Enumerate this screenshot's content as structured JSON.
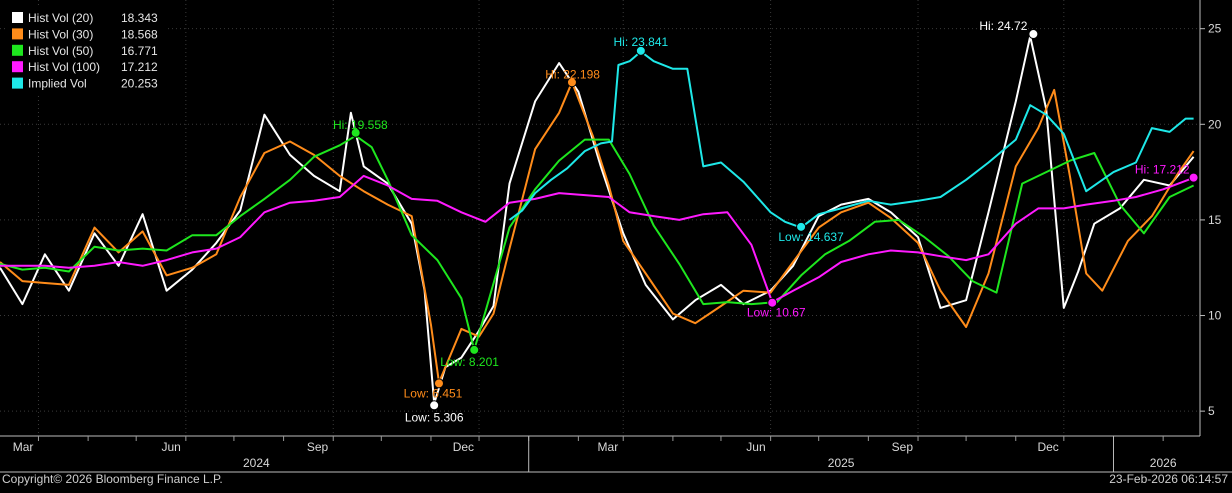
{
  "copyright": "Copyright© 2026 Bloomberg Finance L.P.",
  "timestamp": "23-Feb-2026 06:14:57",
  "chart_data": {
    "type": "line",
    "x_label_type": "date",
    "xlim": [
      "2024-02-06",
      "2026-02-24"
    ],
    "ylim": [
      3.7,
      26.5
    ],
    "y_ticks": [
      5,
      10,
      15,
      20,
      25
    ],
    "grid": true,
    "legend_position": "top-left",
    "x_month_ticks": [
      {
        "label": "Mar",
        "date": "2024-03-01"
      },
      {
        "label": "Jun",
        "date": "2024-06-01"
      },
      {
        "label": "Sep",
        "date": "2024-09-01"
      },
      {
        "label": "Dec",
        "date": "2024-12-01"
      },
      {
        "label": "Mar",
        "date": "2025-03-01"
      },
      {
        "label": "Jun",
        "date": "2025-06-01"
      },
      {
        "label": "Sep",
        "date": "2025-09-01"
      },
      {
        "label": "Dec",
        "date": "2025-12-01"
      }
    ],
    "x_year_labels": [
      {
        "label": "2024",
        "date": "2024-07-15"
      },
      {
        "label": "2025",
        "date": "2025-07-15"
      },
      {
        "label": "2026",
        "date": "2026-02-01"
      }
    ],
    "x_year_dividers": [
      "2025-01-01",
      "2026-01-01"
    ],
    "series": [
      {
        "name": "Hist Vol (20)",
        "last": "18.343",
        "color": "#ffffff",
        "x": [
          "2024-02-06",
          "2024-02-20",
          "2024-03-05",
          "2024-03-20",
          "2024-04-05",
          "2024-04-20",
          "2024-05-05",
          "2024-05-20",
          "2024-06-05",
          "2024-06-20",
          "2024-07-05",
          "2024-07-20",
          "2024-08-05",
          "2024-08-20",
          "2024-09-05",
          "2024-09-12",
          "2024-09-20",
          "2024-10-05",
          "2024-10-20",
          "2024-10-28",
          "2024-11-03",
          "2024-11-10",
          "2024-11-20",
          "2024-12-01",
          "2024-12-10",
          "2024-12-20",
          "2025-01-05",
          "2025-01-20",
          "2025-02-01",
          "2025-02-15",
          "2025-03-01",
          "2025-03-15",
          "2025-04-01",
          "2025-04-15",
          "2025-05-01",
          "2025-05-15",
          "2025-06-01",
          "2025-06-15",
          "2025-07-01",
          "2025-07-15",
          "2025-08-01",
          "2025-08-15",
          "2025-09-01",
          "2025-09-15",
          "2025-10-01",
          "2025-10-15",
          "2025-11-01",
          "2025-11-10",
          "2025-11-20",
          "2025-12-01",
          "2025-12-10",
          "2025-12-20",
          "2026-01-05",
          "2026-01-20",
          "2026-02-05",
          "2026-02-20"
        ],
        "y": [
          12.5,
          10.6,
          13.2,
          11.3,
          14.3,
          12.6,
          15.3,
          11.3,
          12.4,
          13.8,
          15.5,
          20.5,
          18.4,
          17.3,
          16.5,
          20.6,
          17.8,
          16.9,
          14.8,
          11.3,
          5.4,
          7.3,
          7.8,
          9.2,
          10.5,
          16.9,
          21.2,
          23.2,
          21.7,
          17.8,
          14.3,
          11.6,
          9.8,
          10.8,
          11.6,
          10.6,
          11.3,
          12.6,
          15.2,
          15.8,
          16.1,
          15.4,
          14.1,
          10.4,
          10.8,
          15.4,
          21.2,
          24.6,
          20.8,
          10.4,
          12.3,
          14.8,
          15.6,
          17.1,
          16.8,
          18.3
        ]
      },
      {
        "name": "Hist Vol (30)",
        "last": "18.568",
        "color": "#ff8c1a",
        "x": [
          "2024-02-06",
          "2024-02-20",
          "2024-03-05",
          "2024-03-20",
          "2024-04-05",
          "2024-04-20",
          "2024-05-05",
          "2024-05-20",
          "2024-06-05",
          "2024-06-20",
          "2024-07-05",
          "2024-07-20",
          "2024-08-05",
          "2024-08-20",
          "2024-09-05",
          "2024-09-20",
          "2024-10-05",
          "2024-10-20",
          "2024-11-01",
          "2024-11-06",
          "2024-11-20",
          "2024-12-01",
          "2024-12-10",
          "2024-12-20",
          "2025-01-05",
          "2025-01-20",
          "2025-01-28",
          "2025-02-10",
          "2025-02-20",
          "2025-03-01",
          "2025-03-15",
          "2025-04-01",
          "2025-04-15",
          "2025-05-01",
          "2025-05-15",
          "2025-06-01",
          "2025-06-15",
          "2025-07-01",
          "2025-07-15",
          "2025-08-01",
          "2025-08-15",
          "2025-09-01",
          "2025-09-15",
          "2025-10-01",
          "2025-10-15",
          "2025-11-01",
          "2025-11-15",
          "2025-11-25",
          "2025-12-05",
          "2025-12-15",
          "2025-12-25",
          "2026-01-10",
          "2026-01-25",
          "2026-02-10",
          "2026-02-20"
        ],
        "y": [
          12.8,
          11.8,
          11.7,
          11.6,
          14.6,
          13.3,
          14.4,
          12.1,
          12.5,
          13.2,
          16.2,
          18.5,
          19.1,
          18.4,
          17.3,
          16.5,
          15.8,
          15.2,
          9.5,
          6.5,
          9.3,
          8.9,
          10.1,
          13.5,
          18.7,
          20.6,
          22.2,
          19.4,
          16.8,
          13.9,
          12.2,
          10.1,
          9.6,
          10.5,
          11.3,
          11.2,
          12.8,
          14.6,
          15.4,
          15.9,
          15.1,
          13.8,
          11.3,
          9.4,
          12.2,
          17.8,
          19.8,
          21.8,
          17.2,
          12.2,
          11.3,
          13.9,
          15.2,
          17.4,
          18.6
        ]
      },
      {
        "name": "Hist Vol (50)",
        "last": "16.771",
        "color": "#1ee61e",
        "x": [
          "2024-02-06",
          "2024-02-20",
          "2024-03-05",
          "2024-03-20",
          "2024-04-05",
          "2024-04-20",
          "2024-05-05",
          "2024-05-20",
          "2024-06-05",
          "2024-06-20",
          "2024-07-05",
          "2024-07-20",
          "2024-08-05",
          "2024-08-20",
          "2024-09-05",
          "2024-09-15",
          "2024-09-25",
          "2024-10-05",
          "2024-10-20",
          "2024-11-05",
          "2024-11-20",
          "2024-11-28",
          "2024-12-05",
          "2024-12-20",
          "2025-01-05",
          "2025-01-20",
          "2025-02-05",
          "2025-02-20",
          "2025-03-05",
          "2025-03-20",
          "2025-04-05",
          "2025-04-20",
          "2025-05-05",
          "2025-05-20",
          "2025-06-05",
          "2025-06-20",
          "2025-07-05",
          "2025-07-20",
          "2025-08-05",
          "2025-08-20",
          "2025-09-05",
          "2025-09-20",
          "2025-10-05",
          "2025-10-20",
          "2025-11-05",
          "2025-11-20",
          "2025-12-05",
          "2025-12-20",
          "2026-01-05",
          "2026-01-20",
          "2026-02-05",
          "2026-02-20"
        ],
        "y": [
          12.7,
          12.4,
          12.5,
          12.3,
          13.6,
          13.4,
          13.5,
          13.4,
          14.2,
          14.2,
          15.2,
          16.1,
          17.1,
          18.3,
          18.9,
          19.4,
          18.8,
          17.1,
          14.2,
          12.9,
          10.9,
          8.2,
          10.2,
          14.6,
          16.6,
          18.1,
          19.2,
          19.2,
          17.4,
          14.7,
          12.7,
          10.6,
          10.7,
          10.6,
          10.7,
          12.1,
          13.2,
          13.9,
          14.9,
          15.0,
          14.1,
          13.1,
          11.8,
          11.2,
          16.9,
          17.5,
          18.1,
          18.5,
          15.8,
          14.3,
          16.2,
          16.8
        ]
      },
      {
        "name": "Hist Vol (100)",
        "last": "17.212",
        "color": "#ff1aff",
        "x": [
          "2024-02-06",
          "2024-02-20",
          "2024-03-05",
          "2024-03-20",
          "2024-04-05",
          "2024-04-20",
          "2024-05-05",
          "2024-05-20",
          "2024-06-05",
          "2024-06-20",
          "2024-07-05",
          "2024-07-20",
          "2024-08-05",
          "2024-08-20",
          "2024-09-05",
          "2024-09-20",
          "2024-10-05",
          "2024-10-20",
          "2024-11-05",
          "2024-11-20",
          "2024-12-05",
          "2024-12-20",
          "2025-01-05",
          "2025-01-20",
          "2025-02-05",
          "2025-02-20",
          "2025-03-05",
          "2025-03-20",
          "2025-04-05",
          "2025-04-20",
          "2025-05-05",
          "2025-05-20",
          "2025-06-02",
          "2025-06-15",
          "2025-07-01",
          "2025-07-15",
          "2025-08-01",
          "2025-08-15",
          "2025-09-01",
          "2025-09-15",
          "2025-10-01",
          "2025-10-15",
          "2025-11-01",
          "2025-11-15",
          "2025-12-01",
          "2025-12-15",
          "2026-01-01",
          "2026-01-15",
          "2026-02-01",
          "2026-02-20"
        ],
        "y": [
          12.6,
          12.6,
          12.6,
          12.5,
          12.6,
          12.8,
          12.6,
          12.9,
          13.3,
          13.5,
          14.1,
          15.4,
          15.9,
          16.0,
          16.2,
          17.3,
          16.8,
          16.1,
          16.0,
          15.4,
          14.9,
          15.9,
          16.1,
          16.4,
          16.3,
          16.2,
          15.4,
          15.2,
          15.0,
          15.3,
          15.4,
          13.7,
          10.7,
          11.3,
          12.0,
          12.8,
          13.2,
          13.4,
          13.3,
          13.1,
          12.9,
          13.2,
          14.8,
          15.6,
          15.6,
          15.8,
          16.0,
          16.2,
          16.6,
          17.2
        ]
      },
      {
        "name": "Implied Vol",
        "last": "20.253",
        "color": "#1ee8e8",
        "x": [
          "2024-12-20",
          "2024-12-28",
          "2025-01-05",
          "2025-01-15",
          "2025-01-25",
          "2025-02-05",
          "2025-02-15",
          "2025-02-22",
          "2025-02-26",
          "2025-03-05",
          "2025-03-12",
          "2025-03-20",
          "2025-04-01",
          "2025-04-10",
          "2025-04-20",
          "2025-05-01",
          "2025-05-15",
          "2025-06-01",
          "2025-06-10",
          "2025-06-20",
          "2025-07-01",
          "2025-07-15",
          "2025-08-01",
          "2025-08-15",
          "2025-09-01",
          "2025-09-15",
          "2025-10-01",
          "2025-10-15",
          "2025-11-01",
          "2025-11-10",
          "2025-11-20",
          "2025-12-01",
          "2025-12-15",
          "2026-01-01",
          "2026-01-15",
          "2026-01-25",
          "2026-02-05",
          "2026-02-15",
          "2026-02-20"
        ],
        "y": [
          15.0,
          15.5,
          16.4,
          17.1,
          17.7,
          18.6,
          19.0,
          19.1,
          23.1,
          23.3,
          23.8,
          23.3,
          22.9,
          22.9,
          17.8,
          18.0,
          17.0,
          15.4,
          14.9,
          14.6,
          15.3,
          15.6,
          16.0,
          15.8,
          16.0,
          16.2,
          17.1,
          18.0,
          19.2,
          21.0,
          20.5,
          19.5,
          16.5,
          17.5,
          18.0,
          19.8,
          19.6,
          20.3,
          20.3
        ]
      }
    ],
    "annotations": [
      {
        "text": "Hi: 24.72",
        "series": "Hist Vol (20)",
        "x": "2025-11-12",
        "y": 24.72,
        "anchor": "end",
        "dx": -6,
        "dy": -4,
        "dot": true
      },
      {
        "text": "Low: 5.306",
        "series": "Hist Vol (20)",
        "x": "2024-11-03",
        "y": 5.306,
        "anchor": "middle",
        "dx": 0,
        "dy": 16,
        "dot": true
      },
      {
        "text": "Hi: 22.198",
        "series": "Hist Vol (30)",
        "x": "2025-01-28",
        "y": 22.198,
        "anchor": "end",
        "dx": 28,
        "dy": -4,
        "dot": true
      },
      {
        "text": "Low: 6.451",
        "series": "Hist Vol (30)",
        "x": "2024-11-06",
        "y": 6.451,
        "anchor": "middle",
        "dx": -6,
        "dy": 14,
        "dot": true
      },
      {
        "text": "Hi: 19.558",
        "series": "Hist Vol (50)",
        "x": "2024-09-15",
        "y": 19.558,
        "anchor": "end",
        "dx": 32,
        "dy": -4,
        "dot": true
      },
      {
        "text": "Low: 8.201",
        "series": "Hist Vol (50)",
        "x": "2024-11-28",
        "y": 8.201,
        "anchor": "start",
        "dx": -34,
        "dy": 16,
        "dot": true
      },
      {
        "text": "Hi: 17.212",
        "series": "Hist Vol (100)",
        "x": "2026-02-20",
        "y": 17.212,
        "anchor": "end",
        "dx": -4,
        "dy": -4,
        "dot": true
      },
      {
        "text": "Low: 10.67",
        "series": "Hist Vol (100)",
        "x": "2025-06-02",
        "y": 10.67,
        "anchor": "middle",
        "dx": 4,
        "dy": 14,
        "dot": true
      },
      {
        "text": "Hi: 23.841",
        "series": "Implied Vol",
        "x": "2025-03-12",
        "y": 23.841,
        "anchor": "middle",
        "dx": 0,
        "dy": -5,
        "dot": true
      },
      {
        "text": "Low: 14.637",
        "series": "Implied Vol",
        "x": "2025-06-20",
        "y": 14.637,
        "anchor": "middle",
        "dx": 10,
        "dy": 14,
        "dot": true
      }
    ]
  }
}
